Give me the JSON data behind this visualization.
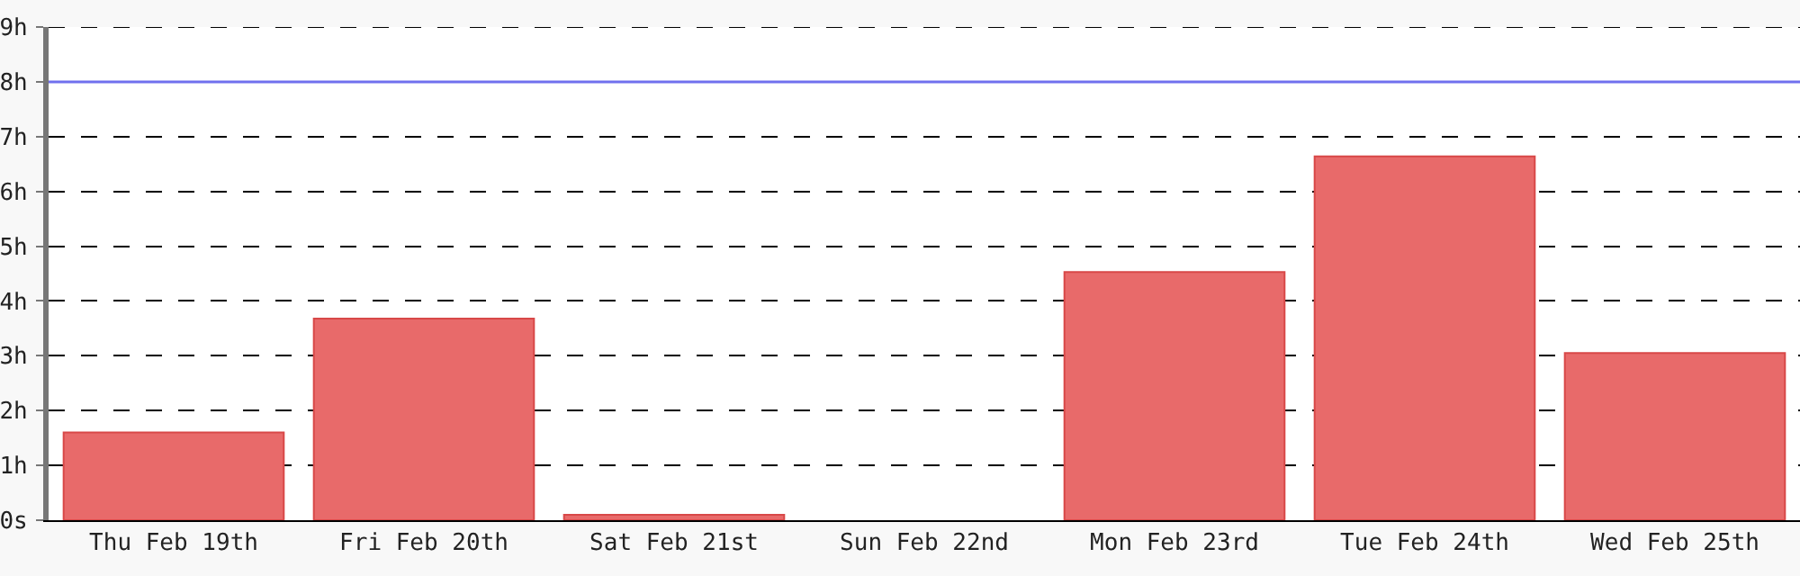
{
  "chart_data": {
    "type": "bar",
    "categories": [
      "Thu Feb 19th",
      "Fri Feb 20th",
      "Sat Feb 21st",
      "Sun Feb 22nd",
      "Mon Feb 23rd",
      "Tue Feb 24th",
      "Wed Feb 25th"
    ],
    "values": [
      1.6,
      3.68,
      0.1,
      0,
      4.53,
      6.64,
      3.05
    ],
    "color": "#e86a6a",
    "ylim": [
      0,
      9
    ],
    "yticks": [
      {
        "value": 0,
        "label": "0s"
      },
      {
        "value": 1,
        "label": "1h"
      },
      {
        "value": 2,
        "label": "2h"
      },
      {
        "value": 3,
        "label": "3h"
      },
      {
        "value": 4,
        "label": "4h"
      },
      {
        "value": 5,
        "label": "5h"
      },
      {
        "value": 6,
        "label": "6h"
      },
      {
        "value": 7,
        "label": "7h"
      },
      {
        "value": 8,
        "label": "8h"
      },
      {
        "value": 9,
        "label": "9h"
      }
    ],
    "ref_lines": [
      {
        "axis": "y",
        "value": 8,
        "color": "#7070ee"
      }
    ],
    "grid": "y"
  }
}
